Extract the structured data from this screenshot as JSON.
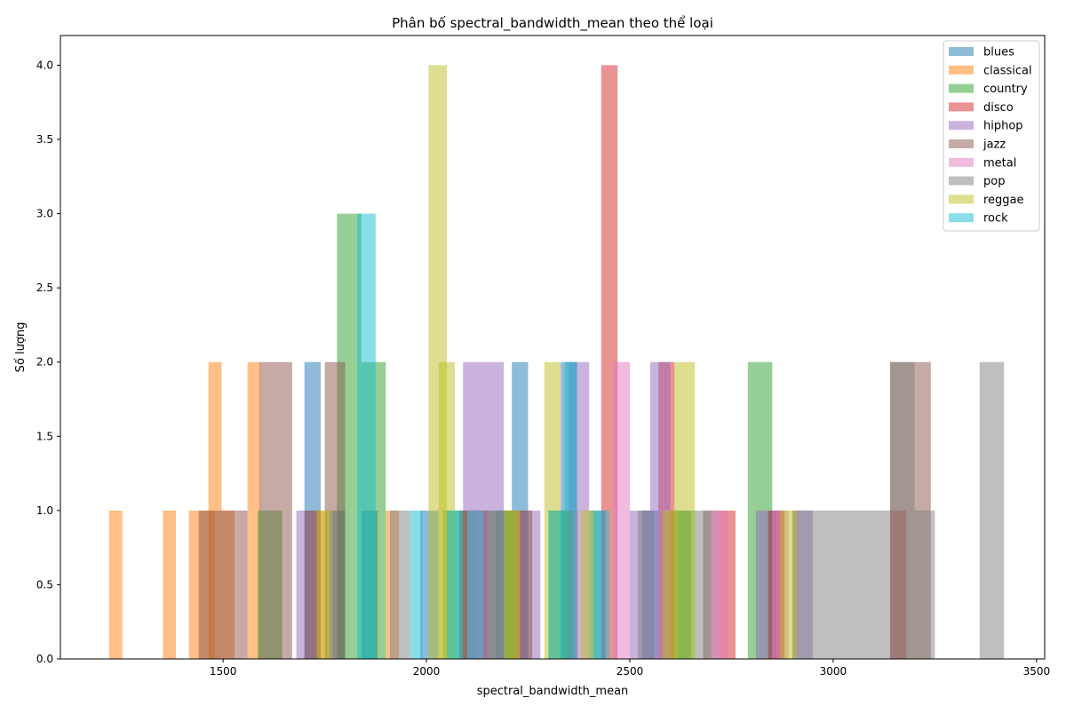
{
  "chart_data": {
    "type": "bar",
    "title": "Phân bố spectral_bandwidth_mean theo thể loại",
    "xlabel": "spectral_bandwidth_mean",
    "ylabel": "Số lượng",
    "xlim": [
      1100,
      3520
    ],
    "ylim": [
      0,
      4.2
    ],
    "xticks": [
      1500,
      2000,
      2500,
      3000,
      3500
    ],
    "yticks": [
      0.0,
      0.5,
      1.0,
      1.5,
      2.0,
      2.5,
      3.0,
      3.5,
      4.0
    ],
    "grid": false,
    "legend_position": "top-right",
    "opacity": 0.5,
    "series": [
      {
        "name": "blues",
        "color": "#1f77b4",
        "bins": [
          [
            1700,
            1740,
            2
          ],
          [
            1760,
            1800,
            1
          ],
          [
            1840,
            1880,
            1
          ],
          [
            1985,
            2030,
            1
          ],
          [
            2170,
            2210,
            1
          ],
          [
            2210,
            2250,
            2
          ],
          [
            2330,
            2370,
            2
          ],
          [
            2400,
            2440,
            1
          ],
          [
            2530,
            2570,
            1
          ],
          [
            2610,
            2650,
            1
          ]
        ]
      },
      {
        "name": "classical",
        "color": "#ff7f0e",
        "bins": [
          [
            1220,
            1252,
            1
          ],
          [
            1352,
            1384,
            1
          ],
          [
            1416,
            1448,
            1
          ],
          [
            1448,
            1480,
            1
          ],
          [
            1464,
            1496,
            2
          ],
          [
            1496,
            1528,
            1
          ],
          [
            1560,
            1592,
            2
          ],
          [
            1725,
            1757,
            1
          ],
          [
            1900,
            1932,
            1
          ],
          [
            2085,
            2117,
            1
          ],
          [
            2200,
            2232,
            1
          ],
          [
            2340,
            2372,
            1
          ]
        ]
      },
      {
        "name": "country",
        "color": "#2ca02c",
        "bins": [
          [
            1585,
            1645,
            1
          ],
          [
            1780,
            1840,
            3
          ],
          [
            1840,
            1900,
            2
          ],
          [
            2040,
            2100,
            1
          ],
          [
            2100,
            2160,
            1
          ],
          [
            2160,
            2220,
            1
          ],
          [
            2300,
            2360,
            1
          ],
          [
            2600,
            2660,
            1
          ],
          [
            2790,
            2850,
            2
          ]
        ]
      },
      {
        "name": "disco",
        "color": "#d62728",
        "bins": [
          [
            2110,
            2150,
            1
          ],
          [
            2430,
            2470,
            4
          ],
          [
            2570,
            2610,
            2
          ],
          [
            2720,
            2760,
            1
          ],
          [
            2840,
            2880,
            1
          ],
          [
            3140,
            3180,
            1
          ]
        ]
      },
      {
        "name": "hiphop",
        "color": "#9467bd",
        "bins": [
          [
            1680,
            1730,
            1
          ],
          [
            2090,
            2140,
            2
          ],
          [
            2140,
            2190,
            2
          ],
          [
            2230,
            2280,
            1
          ],
          [
            2350,
            2400,
            2
          ],
          [
            2500,
            2550,
            1
          ],
          [
            2550,
            2600,
            2
          ],
          [
            2810,
            2860,
            1
          ],
          [
            2900,
            2950,
            1
          ]
        ]
      },
      {
        "name": "jazz",
        "color": "#8c564b",
        "bins": [
          [
            1440,
            1480,
            1
          ],
          [
            1480,
            1520,
            1
          ],
          [
            1520,
            1560,
            1
          ],
          [
            1590,
            1670,
            2
          ],
          [
            1700,
            1740,
            1
          ],
          [
            1750,
            1800,
            2
          ],
          [
            2080,
            2120,
            1
          ],
          [
            2220,
            2260,
            1
          ],
          [
            2680,
            2720,
            1
          ],
          [
            2840,
            2880,
            1
          ],
          [
            3140,
            3240,
            2
          ]
        ]
      },
      {
        "name": "metal",
        "color": "#e377c2",
        "bins": [
          [
            2100,
            2140,
            1
          ],
          [
            2460,
            2500,
            2
          ],
          [
            2700,
            2740,
            1
          ],
          [
            2850,
            2890,
            1
          ]
        ]
      },
      {
        "name": "pop",
        "color": "#7f7f7f",
        "bins": [
          [
            1910,
            1960,
            1
          ],
          [
            2150,
            2200,
            1
          ],
          [
            2520,
            2560,
            1
          ],
          [
            2660,
            2700,
            1
          ],
          [
            2900,
            2950,
            1
          ],
          [
            2950,
            3140,
            1
          ],
          [
            3140,
            3200,
            2
          ],
          [
            3200,
            3250,
            1
          ],
          [
            3360,
            3420,
            2
          ]
        ]
      },
      {
        "name": "reggae",
        "color": "#bcbd22",
        "bins": [
          [
            1730,
            1770,
            1
          ],
          [
            2005,
            2050,
            4
          ],
          [
            2030,
            2070,
            2
          ],
          [
            2190,
            2230,
            1
          ],
          [
            2290,
            2330,
            2
          ],
          [
            2380,
            2420,
            1
          ],
          [
            2580,
            2620,
            1
          ],
          [
            2610,
            2660,
            2
          ],
          [
            2870,
            2910,
            1
          ]
        ]
      },
      {
        "name": "rock",
        "color": "#17becf",
        "bins": [
          [
            1830,
            1875,
            3
          ],
          [
            1960,
            1990,
            1
          ],
          [
            2050,
            2090,
            1
          ],
          [
            2100,
            2140,
            1
          ],
          [
            2300,
            2340,
            1
          ],
          [
            2340,
            2370,
            2
          ],
          [
            2410,
            2450,
            1
          ]
        ]
      }
    ]
  }
}
